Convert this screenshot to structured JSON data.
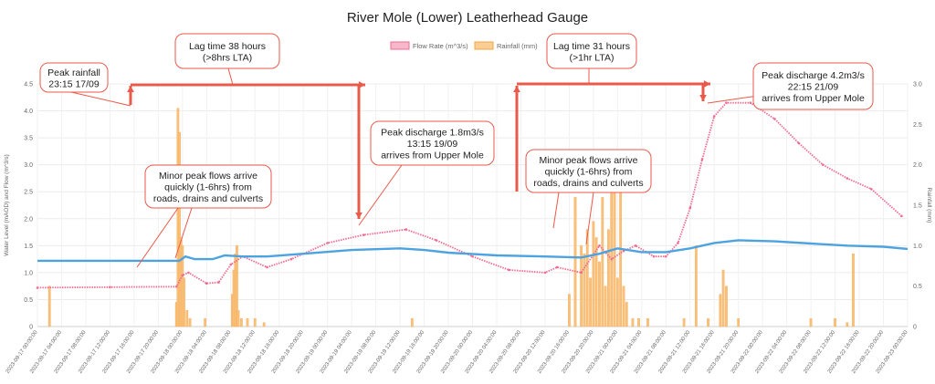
{
  "chart_data": {
    "type": "line",
    "title": "River Mole (Lower) Leatherhead Gauge",
    "ylabel": "Water Level (mAOD) and Flow (m^3/s)",
    "y2label": "Rainfall (mm)",
    "ylim": [
      0,
      4.5
    ],
    "y2lim": [
      0,
      3.0
    ],
    "yticks": [
      "0",
      "0.5",
      "1.0",
      "1.5",
      "2.0",
      "2.5",
      "3.0",
      "3.5",
      "4.0",
      "4.5"
    ],
    "y2ticks": [
      "0",
      "0.5",
      "1.0",
      "1.5",
      "2.0",
      "2.5",
      "3.0"
    ],
    "legend": [
      {
        "name": "Flow Rate (m^3/s)",
        "color": "#f06b92",
        "fill": "#f7b8cb"
      },
      {
        "name": "Rainfall (mm)",
        "color": "#f5a442",
        "fill": "#f9cf95"
      }
    ],
    "legend_position": "top",
    "grid": true,
    "colors": {
      "flow": "#f06b92",
      "level": "#4da3e0",
      "rain": "#f9c07c",
      "annotation": "#e85a4a"
    },
    "x_start": "2023-09-17 00:00",
    "x_end": "2023-09-23 00:00",
    "x_labels": [
      "2023-09-17 00:00:00",
      "2023-09-17 04:00:00",
      "2023-09-17 08:00:00",
      "2023-09-17 12:00:00",
      "2023-09-17 16:00:00",
      "2023-09-17 20:00:00",
      "2023-09-18 00:00:00",
      "2023-09-18 04:00:00",
      "2023-09-18 08:00:00",
      "2023-09-18 12:00:00",
      "2023-09-18 16:00:00",
      "2023-09-18 20:00:00",
      "2023-09-19 00:00:00",
      "2023-09-19 04:00:00",
      "2023-09-19 08:00:00",
      "2023-09-19 12:00:00",
      "2023-09-19 16:00:00",
      "2023-09-19 20:00:00",
      "2023-09-20 00:00:00",
      "2023-09-20 04:00:00",
      "2023-09-20 08:00:00",
      "2023-09-20 12:00:00",
      "2023-09-20 16:00:00",
      "2023-09-20 20:00:00",
      "2023-09-21 00:00:00",
      "2023-09-21 04:00:00",
      "2023-09-21 08:00:00",
      "2023-09-21 12:00:00",
      "2023-09-21 16:00:00",
      "2023-09-21 20:00:00",
      "2023-09-22 00:00:00",
      "2023-09-22 04:00:00",
      "2023-09-22 08:00:00",
      "2023-09-22 12:00:00",
      "2023-09-22 16:00:00",
      "2023-09-22 20:00:00",
      "2023-09-23 00:00:00"
    ],
    "series": [
      {
        "name": "Flow Rate (m^3/s)",
        "axis": "left",
        "x": [
          "2023-09-17 00:00",
          "2023-09-17 12:00",
          "2023-09-17 23:00",
          "2023-09-18 00:00",
          "2023-09-18 01:00",
          "2023-09-18 04:00",
          "2023-09-18 06:00",
          "2023-09-18 08:00",
          "2023-09-18 10:00",
          "2023-09-18 14:00",
          "2023-09-18 18:00",
          "2023-09-19 00:00",
          "2023-09-19 06:00",
          "2023-09-19 13:00",
          "2023-09-19 18:00",
          "2023-09-20 00:00",
          "2023-09-20 06:00",
          "2023-09-20 12:00",
          "2023-09-20 14:00",
          "2023-09-20 18:00",
          "2023-09-20 21:00",
          "2023-09-20 23:00",
          "2023-09-21 01:00",
          "2023-09-21 03:00",
          "2023-09-21 06:00",
          "2023-09-21 08:00",
          "2023-09-21 10:00",
          "2023-09-21 12:00",
          "2023-09-21 14:00",
          "2023-09-21 16:00",
          "2023-09-21 18:00",
          "2023-09-21 22:00",
          "2023-09-22 02:00",
          "2023-09-22 06:00",
          "2023-09-22 10:00",
          "2023-09-22 14:00",
          "2023-09-22 18:00",
          "2023-09-22 23:00"
        ],
        "values": [
          0.72,
          0.73,
          0.74,
          0.95,
          1.0,
          0.8,
          0.82,
          1.15,
          1.3,
          1.1,
          1.25,
          1.55,
          1.7,
          1.8,
          1.6,
          1.3,
          1.05,
          1.0,
          1.1,
          1.0,
          1.5,
          1.25,
          1.4,
          1.5,
          1.3,
          1.3,
          1.55,
          2.2,
          3.1,
          3.9,
          4.15,
          4.15,
          3.85,
          3.4,
          3.0,
          2.75,
          2.55,
          2.05
        ]
      },
      {
        "name": "Water Level (mAOD)",
        "axis": "left",
        "x": [
          "2023-09-17 00:00",
          "2023-09-17 23:30",
          "2023-09-18 00:30",
          "2023-09-18 02:00",
          "2023-09-18 05:00",
          "2023-09-18 07:00",
          "2023-09-18 10:00",
          "2023-09-18 14:00",
          "2023-09-18 20:00",
          "2023-09-19 04:00",
          "2023-09-19 12:00",
          "2023-09-19 16:00",
          "2023-09-19 20:00",
          "2023-09-20 04:00",
          "2023-09-20 12:00",
          "2023-09-20 18:00",
          "2023-09-20 21:00",
          "2023-09-21 00:00",
          "2023-09-21 04:00",
          "2023-09-21 08:00",
          "2023-09-21 12:00",
          "2023-09-21 16:00",
          "2023-09-21 20:00",
          "2023-09-22 02:00",
          "2023-09-22 08:00",
          "2023-09-22 14:00",
          "2023-09-22 20:00",
          "2023-09-23 00:00"
        ],
        "values": [
          1.22,
          1.22,
          1.3,
          1.25,
          1.25,
          1.32,
          1.3,
          1.3,
          1.35,
          1.42,
          1.45,
          1.42,
          1.37,
          1.32,
          1.3,
          1.28,
          1.35,
          1.45,
          1.38,
          1.38,
          1.45,
          1.55,
          1.6,
          1.58,
          1.54,
          1.5,
          1.48,
          1.44
        ]
      },
      {
        "name": "Rainfall (mm)",
        "axis": "right",
        "type": "bar",
        "x": [
          "2023-09-17 02:00",
          "2023-09-17 23:00",
          "2023-09-17 23:15",
          "2023-09-17 23:30",
          "2023-09-17 23:45",
          "2023-09-18 00:00",
          "2023-09-18 00:15",
          "2023-09-18 00:45",
          "2023-09-18 01:15",
          "2023-09-18 03:45",
          "2023-09-18 08:15",
          "2023-09-18 08:30",
          "2023-09-18 08:45",
          "2023-09-18 09:00",
          "2023-09-18 09:15",
          "2023-09-18 09:45",
          "2023-09-18 10:45",
          "2023-09-18 12:00",
          "2023-09-18 13:30",
          "2023-09-19 14:00",
          "2023-09-20 16:00",
          "2023-09-20 17:00",
          "2023-09-20 18:00",
          "2023-09-20 18:30",
          "2023-09-20 19:00",
          "2023-09-20 19:30",
          "2023-09-20 20:00",
          "2023-09-20 20:30",
          "2023-09-20 21:00",
          "2023-09-20 21:30",
          "2023-09-20 22:00",
          "2023-09-20 22:30",
          "2023-09-20 23:00",
          "2023-09-20 23:30",
          "2023-09-21 00:00",
          "2023-09-21 00:30",
          "2023-09-21 01:00",
          "2023-09-21 01:30",
          "2023-09-21 02:30",
          "2023-09-21 03:30",
          "2023-09-21 05:00",
          "2023-09-21 11:00",
          "2023-09-21 13:00",
          "2023-09-21 15:00",
          "2023-09-21 17:00",
          "2023-09-21 17:30",
          "2023-09-21 18:00",
          "2023-09-21 20:00",
          "2023-09-22 08:00",
          "2023-09-22 12:00",
          "2023-09-22 14:00",
          "2023-09-22 15:00"
        ],
        "values": [
          0.5,
          0.3,
          2.7,
          2.4,
          1.1,
          1.0,
          0.6,
          0.2,
          0.1,
          0.1,
          0.4,
          0.7,
          0.9,
          1.0,
          0.2,
          0.1,
          0.1,
          0.1,
          0.05,
          0.1,
          0.4,
          1.6,
          1.0,
          0.9,
          1.2,
          0.6,
          1.3,
          1.1,
          0.8,
          1.6,
          0.5,
          1.2,
          1.7,
          1.7,
          0.6,
          1.7,
          0.5,
          0.3,
          0.1,
          0.1,
          0.1,
          0.1,
          1.0,
          0.1,
          0.4,
          0.7,
          0.5,
          0.1,
          0.1,
          0.1,
          0.05,
          0.9
        ]
      }
    ],
    "annotations": [
      {
        "id": "peak_rain",
        "lines": [
          "Peak rainfall",
          "23:15 17/09"
        ]
      },
      {
        "id": "lag1",
        "lines": [
          "Lag time 38 hours",
          "(>8hrs LTA)"
        ]
      },
      {
        "id": "minor1",
        "lines": [
          "Minor peak flows arrive",
          "quickly (1-6hrs) from",
          "roads, drains and culverts"
        ]
      },
      {
        "id": "peak1",
        "lines": [
          "Peak discharge 1.8m3/s",
          "13:15  19/09",
          "arrives from Upper Mole"
        ]
      },
      {
        "id": "lag2",
        "lines": [
          "Lag time 31 hours",
          "(>1hr LTA)"
        ]
      },
      {
        "id": "minor2",
        "lines": [
          "Minor peak flows arrive",
          "quickly (1-6hrs) from",
          "roads, drains and culverts"
        ]
      },
      {
        "id": "peak2",
        "lines": [
          "Peak discharge 4.2m3/s",
          "22:15  21/09",
          "arrives from Upper Mole"
        ]
      }
    ]
  }
}
